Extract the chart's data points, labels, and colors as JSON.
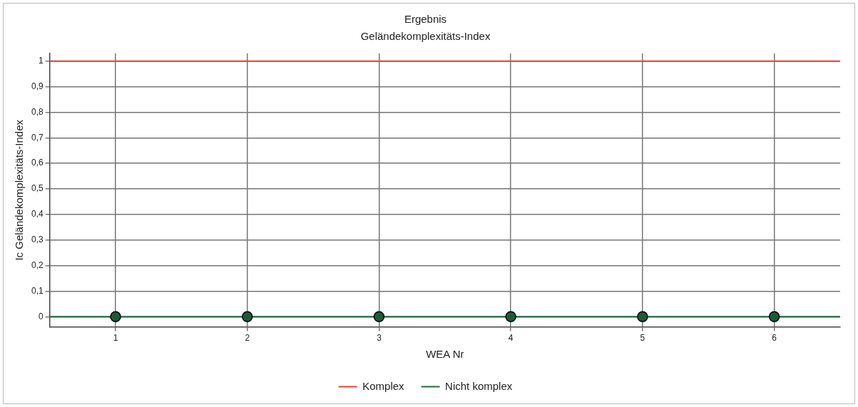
{
  "chart_data": {
    "type": "line",
    "title": "Ergebnis",
    "subtitle": "Geländekomplexitäts-Index",
    "xlabel": "WEA Nr",
    "ylabel": "Ic Geländekomplexitäts-Index",
    "series": [
      {
        "name": "Komplex",
        "color": "#e8413a",
        "x": [
          0.5,
          6.5
        ],
        "values": [
          1,
          1
        ],
        "marker": "none"
      },
      {
        "name": "Nicht komplex",
        "color": "#1e6b3c",
        "x": [
          0.5,
          6.5
        ],
        "values": [
          0,
          0
        ],
        "marker": "none"
      },
      {
        "type": "scatter",
        "color": "#1e5a36",
        "x": [
          1,
          2,
          3,
          4,
          5,
          6
        ],
        "values": [
          0,
          0,
          0,
          0,
          0,
          0
        ],
        "marker": "circle"
      }
    ],
    "xlim": [
      0.5,
      6.5
    ],
    "xticks": [
      1,
      2,
      3,
      4,
      5,
      6
    ],
    "ylim": [
      -0.04,
      1.03
    ],
    "yticks": [
      0,
      {
        "value": 0.1,
        "label": "0,1"
      },
      {
        "value": 0.2,
        "label": "0,2"
      },
      {
        "value": 0.3,
        "label": "0,3"
      },
      {
        "value": 0.4,
        "label": "0,4"
      },
      {
        "value": 0.5,
        "label": "0,5"
      },
      {
        "value": 0.6,
        "label": "0,6"
      },
      {
        "value": 0.7,
        "label": "0,7"
      },
      {
        "value": 0.8,
        "label": "0,8"
      },
      {
        "value": 0.9,
        "label": "0,9"
      },
      1
    ],
    "grid": true,
    "legend": "bottom"
  }
}
